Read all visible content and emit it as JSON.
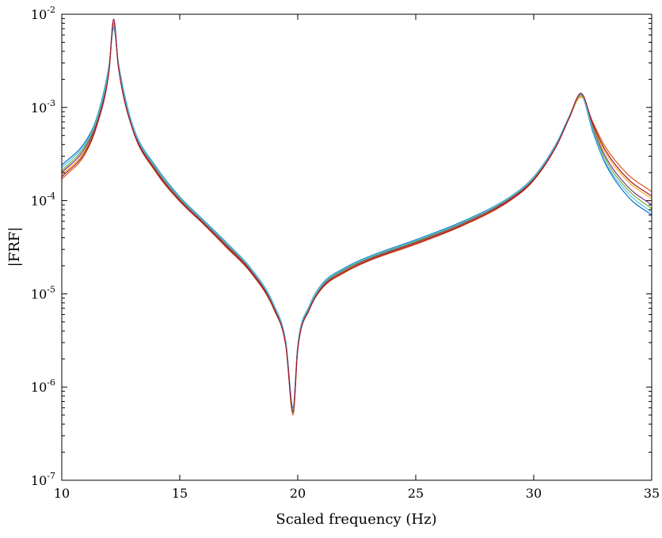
{
  "chart_data": {
    "type": "line",
    "title": "",
    "xlabel": "Scaled frequency (Hz)",
    "ylabel": "|FRF|",
    "xlim": [
      10,
      35
    ],
    "ylim": [
      1e-07,
      0.01
    ],
    "yscale": "log",
    "grid": false,
    "legend": "none",
    "x_ticks": [
      {
        "value": 10,
        "label": "10"
      },
      {
        "value": 15,
        "label": "15"
      },
      {
        "value": 20,
        "label": "20"
      },
      {
        "value": 25,
        "label": "25"
      },
      {
        "value": 30,
        "label": "30"
      },
      {
        "value": 35,
        "label": "35"
      }
    ],
    "y_ticks": [
      {
        "value": 1e-07,
        "base": "10",
        "exp": "-7"
      },
      {
        "value": 1e-06,
        "base": "10",
        "exp": "-6"
      },
      {
        "value": 1e-05,
        "base": "10",
        "exp": "-5"
      },
      {
        "value": 0.0001,
        "base": "10",
        "exp": "-4"
      },
      {
        "value": 0.001,
        "base": "10",
        "exp": "-3"
      },
      {
        "value": 0.01,
        "base": "10",
        "exp": "-2"
      }
    ],
    "x": [
      10,
      11,
      11.5,
      12,
      12.2,
      12.4,
      13,
      14,
      15,
      16,
      17,
      18,
      19,
      19.5,
      19.8,
      20,
      20.5,
      21,
      22,
      23,
      25,
      27,
      29,
      30,
      31,
      31.5,
      32,
      32.5,
      33,
      34,
      35
    ],
    "series": [
      {
        "color": "#0072BD",
        "values": [
          0.00024,
          0.00043,
          0.0008,
          0.0028,
          0.007,
          0.003,
          0.00065,
          0.00023,
          0.00011,
          6.2e-05,
          3.5e-05,
          1.9e-05,
          7.5e-06,
          3e-06,
          6e-07,
          2.8e-06,
          7.5e-06,
          1.25e-05,
          1.9e-05,
          2.5e-05,
          3.8e-05,
          6e-05,
          0.00011,
          0.00018,
          0.00043,
          0.0008,
          0.00135,
          0.00055,
          0.00026,
          0.00011,
          7e-05
        ]
      },
      {
        "color": "#D95319",
        "values": [
          0.00017,
          0.00032,
          0.00065,
          0.0024,
          0.008,
          0.0027,
          0.00058,
          0.0002,
          9.8e-05,
          5.6e-05,
          3.1e-05,
          1.7e-05,
          6.7e-06,
          2.7e-06,
          5e-07,
          2.5e-06,
          6.8e-06,
          1.12e-05,
          1.7e-05,
          2.25e-05,
          3.4e-05,
          5.4e-05,
          0.0001,
          0.000165,
          0.0004,
          0.00076,
          0.0013,
          0.0007,
          0.00039,
          0.00019,
          0.000125
        ]
      },
      {
        "color": "#EDB120",
        "values": [
          0.00019,
          0.00035,
          0.00069,
          0.0025,
          0.0076,
          0.0028,
          0.0006,
          0.00021,
          0.000102,
          5.8e-05,
          3.25e-05,
          1.78e-05,
          7e-06,
          2.8e-06,
          5.3e-07,
          2.6e-06,
          7e-06,
          1.16e-05,
          1.76e-05,
          2.33e-05,
          3.55e-05,
          5.6e-05,
          0.000104,
          0.00017,
          0.00041,
          0.00077,
          0.00132,
          0.00065,
          0.00034,
          0.00016,
          0.000105
        ]
      },
      {
        "color": "#7E2F8E",
        "values": [
          0.0002,
          0.00037,
          0.00072,
          0.0026,
          0.0086,
          0.00285,
          0.000615,
          0.000215,
          0.000104,
          5.9e-05,
          3.3e-05,
          1.81e-05,
          7.1e-06,
          2.85e-06,
          5.5e-07,
          2.65e-06,
          7.1e-06,
          1.18e-05,
          1.8e-05,
          2.37e-05,
          3.6e-05,
          5.7e-05,
          0.000105,
          0.000172,
          0.000415,
          0.00078,
          0.0014,
          0.00062,
          0.00031,
          0.00014,
          9e-05
        ]
      },
      {
        "color": "#77AC30",
        "values": [
          0.00021,
          0.00039,
          0.00075,
          0.00265,
          0.0073,
          0.0029,
          0.00063,
          0.00022,
          0.000106,
          6e-05,
          3.38e-05,
          1.85e-05,
          7.3e-06,
          2.9e-06,
          5.2e-07,
          2.7e-06,
          7.2e-06,
          1.2e-05,
          1.83e-05,
          2.41e-05,
          3.67e-05,
          5.8e-05,
          0.000107,
          0.000175,
          0.00042,
          0.00079,
          0.00136,
          0.0006,
          0.00029,
          0.00013,
          8.2e-05
        ]
      },
      {
        "color": "#4DBEEE",
        "values": [
          0.000225,
          0.00041,
          0.00078,
          0.00275,
          0.0074,
          0.00295,
          0.00064,
          0.000225,
          0.000108,
          6.1e-05,
          3.45e-05,
          1.88e-05,
          7.4e-06,
          2.95e-06,
          5.7e-07,
          2.75e-06,
          7.4e-06,
          1.23e-05,
          1.87e-05,
          2.46e-05,
          3.74e-05,
          5.9e-05,
          0.000109,
          0.000178,
          0.000425,
          0.0008,
          0.00138,
          0.00057,
          0.00027,
          0.00012,
          7.5e-05
        ]
      },
      {
        "color": "#A2142F",
        "values": [
          0.00018,
          0.000335,
          0.00067,
          0.00245,
          0.0089,
          0.00275,
          0.00059,
          0.000205,
          0.0001,
          5.7e-05,
          3.18e-05,
          1.74e-05,
          6.9e-06,
          2.75e-06,
          5.4e-07,
          2.55e-06,
          6.9e-06,
          1.14e-05,
          1.73e-05,
          2.29e-05,
          3.48e-05,
          5.5e-05,
          0.000102,
          0.000168,
          0.000405,
          0.00077,
          0.00142,
          0.00067,
          0.00036,
          0.00017,
          0.000112
        ]
      }
    ]
  }
}
